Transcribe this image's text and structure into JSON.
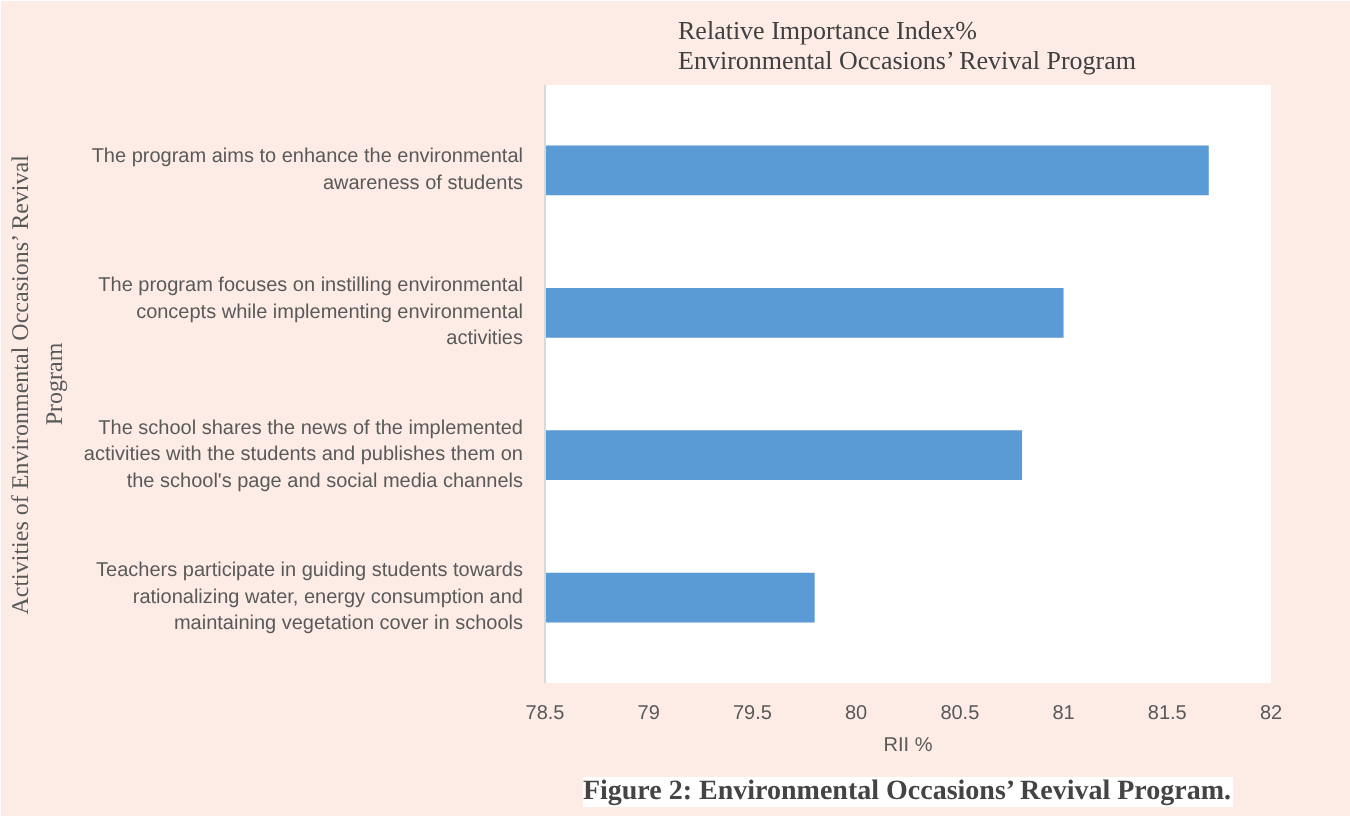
{
  "chart_data": {
    "type": "bar",
    "orientation": "horizontal",
    "title": "Relative Importance Index%\nEnvironmental Occasions’ Revival Program",
    "xlabel": "RII %",
    "ylabel": "Activities of Environmental Occasions’ Revival\nProgram",
    "categories": [
      "The program aims to enhance the environmental awareness of students",
      "The program focuses on instilling environmental concepts while implementing environmental activities",
      "The school shares the news of the implemented activities with the students and publishes them on the school's page and social media channels",
      "Teachers participate in guiding students towards rationalizing water, energy consumption and maintaining vegetation cover in schools"
    ],
    "values": [
      81.7,
      81.0,
      80.8,
      79.8
    ],
    "color": "#5b9bd5",
    "xlim": [
      78.5,
      82
    ],
    "xticks": [
      78.5,
      79,
      79.5,
      80,
      80.5,
      81,
      81.5,
      82
    ],
    "grid": false,
    "annotations": [
      "Figure 2: Environmental Occasions’ Revival Program."
    ]
  }
}
